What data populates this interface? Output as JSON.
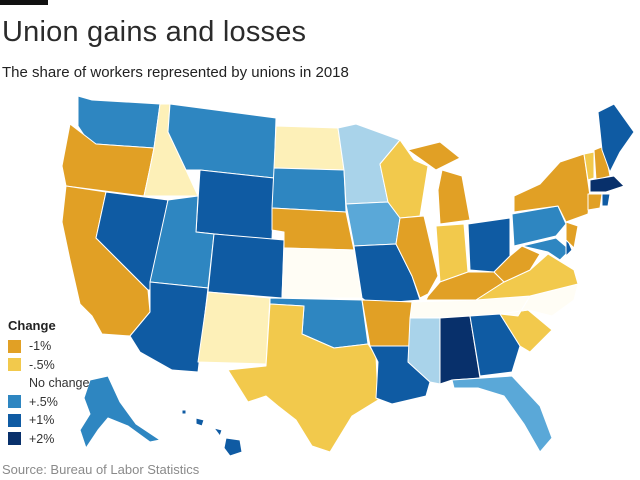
{
  "header": {
    "title": "Union gains and losses",
    "subtitle": "The share of workers represented by unions in 2018"
  },
  "legend": {
    "title": "Change",
    "items": [
      {
        "label": "-1%",
        "color": "#E1A025"
      },
      {
        "label": "-.5%",
        "color": "#F2C94C"
      },
      {
        "label": "No change",
        "color": "#FFFFFF"
      },
      {
        "label": "+.5%",
        "color": "#2E86C1"
      },
      {
        "label": "+1%",
        "color": "#0F5BA3"
      },
      {
        "label": "+2%",
        "color": "#08306B"
      }
    ]
  },
  "map_colors": {
    "down_1": "#E1A025",
    "down_half": "#F2C94C",
    "light_yellow": "#FDF0B8",
    "no_change": "#FFFDF5",
    "light_blue": "#A9D3EA",
    "mid_blue": "#5AA8D8",
    "up_half": "#2E86C1",
    "up_1": "#0F5BA3",
    "up_2": "#08306B"
  },
  "footer": {
    "source": "Source: Bureau of Labor Statistics"
  }
}
